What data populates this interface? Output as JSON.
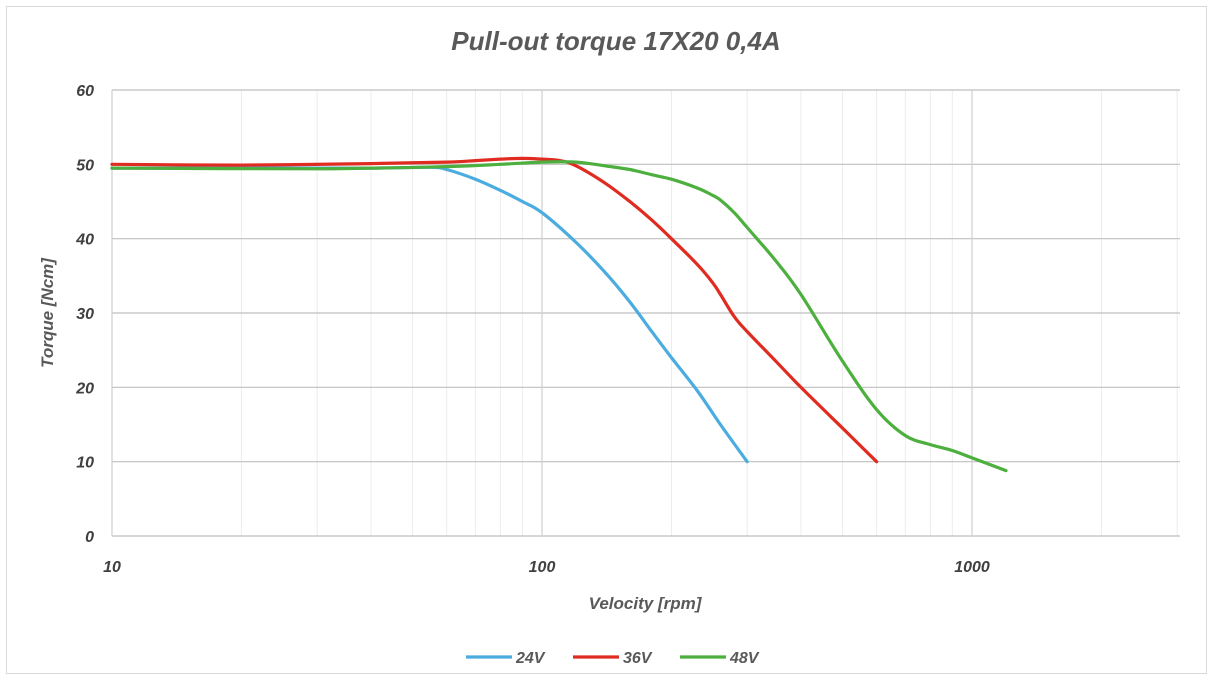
{
  "chart_data": {
    "type": "line",
    "title": "Pull-out torque 17X20 0,4A",
    "xlabel": "Velocity [rpm]",
    "ylabel": "Torque [Ncm]",
    "xscale": "log",
    "xlim": [
      10,
      3000
    ],
    "ylim": [
      0,
      60
    ],
    "x_ticks": [
      10,
      100,
      1000
    ],
    "x_tick_labels": [
      "10",
      "100",
      "1000"
    ],
    "y_ticks": [
      0,
      10,
      20,
      30,
      40,
      50,
      60
    ],
    "y_tick_labels": [
      "0",
      "10",
      "20",
      "30",
      "40",
      "50",
      "60"
    ],
    "grid": true,
    "legend_position": "bottom",
    "series": [
      {
        "name": "24V",
        "color": "#4bacdf",
        "x": [
          10,
          20,
          40,
          55,
          60,
          70,
          80,
          90,
          100,
          120,
          140,
          160,
          180,
          200,
          230,
          260,
          300
        ],
        "y": [
          49.5,
          49.5,
          49.5,
          49.6,
          49.3,
          48.0,
          46.5,
          45.0,
          43.5,
          39.5,
          35.5,
          31.5,
          27.5,
          24.0,
          19.5,
          15.0,
          10.0
        ]
      },
      {
        "name": "36V",
        "color": "#e02b20",
        "x": [
          10,
          20,
          40,
          60,
          70,
          80,
          90,
          100,
          110,
          120,
          140,
          160,
          180,
          200,
          230,
          250,
          260,
          280,
          300,
          350,
          400,
          500,
          600
        ],
        "y": [
          50.0,
          49.9,
          50.1,
          50.3,
          50.5,
          50.7,
          50.8,
          50.7,
          50.5,
          49.8,
          47.5,
          45.0,
          42.5,
          40.0,
          36.5,
          34.0,
          32.5,
          29.5,
          27.5,
          23.5,
          20.0,
          14.5,
          10.0
        ]
      },
      {
        "name": "48V",
        "color": "#4caf3e",
        "x": [
          10,
          30,
          60,
          80,
          100,
          120,
          140,
          160,
          180,
          200,
          230,
          250,
          260,
          280,
          300,
          350,
          400,
          500,
          600,
          700,
          800,
          900,
          1000,
          1200
        ],
        "y": [
          49.5,
          49.4,
          49.7,
          50.0,
          50.3,
          50.3,
          49.8,
          49.3,
          48.6,
          48.0,
          46.8,
          45.8,
          45.2,
          43.5,
          41.5,
          37.0,
          32.5,
          23.5,
          17.0,
          13.5,
          12.3,
          11.5,
          10.5,
          8.8
        ]
      }
    ]
  }
}
